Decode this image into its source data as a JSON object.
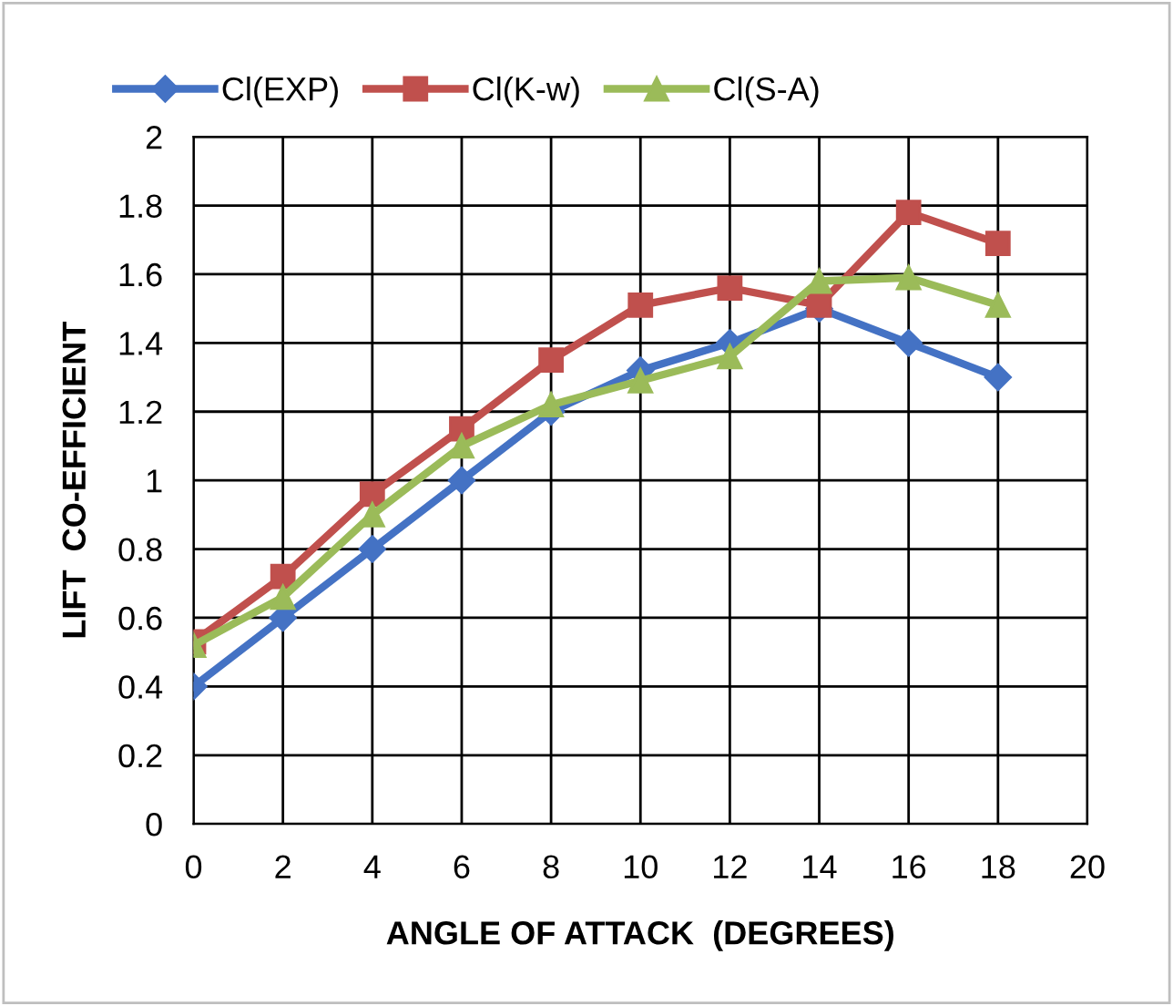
{
  "chart_data": {
    "type": "line",
    "xlabel": "ANGLE OF ATTACK  (DEGREES)",
    "ylabel": "LIFT  CO-EFFICIENT",
    "x": [
      0,
      2,
      4,
      6,
      8,
      10,
      12,
      14,
      16,
      18
    ],
    "series": [
      {
        "name": "Cl(EXP)",
        "color": "#4472c4",
        "marker": "diamond",
        "values": [
          0.4,
          0.6,
          0.8,
          1.0,
          1.2,
          1.32,
          1.4,
          1.5,
          1.4,
          1.3
        ]
      },
      {
        "name": "Cl(K-w)",
        "color": "#c0504d",
        "marker": "square",
        "values": [
          0.53,
          0.72,
          0.96,
          1.15,
          1.35,
          1.51,
          1.56,
          1.51,
          1.78,
          1.69
        ]
      },
      {
        "name": "Cl(S-A)",
        "color": "#9bbb59",
        "marker": "triangle",
        "values": [
          0.52,
          0.66,
          0.9,
          1.1,
          1.22,
          1.29,
          1.36,
          1.58,
          1.59,
          1.51
        ]
      }
    ],
    "xlim": [
      0,
      20
    ],
    "xticks": [
      0,
      2,
      4,
      6,
      8,
      10,
      12,
      14,
      16,
      18,
      20
    ],
    "ylim": [
      0,
      2
    ],
    "yticks": [
      0,
      0.2,
      0.4,
      0.6,
      0.8,
      1,
      1.2,
      1.4,
      1.6,
      1.8,
      2
    ],
    "grid": true,
    "legend": "top",
    "line_style": "solid"
  }
}
